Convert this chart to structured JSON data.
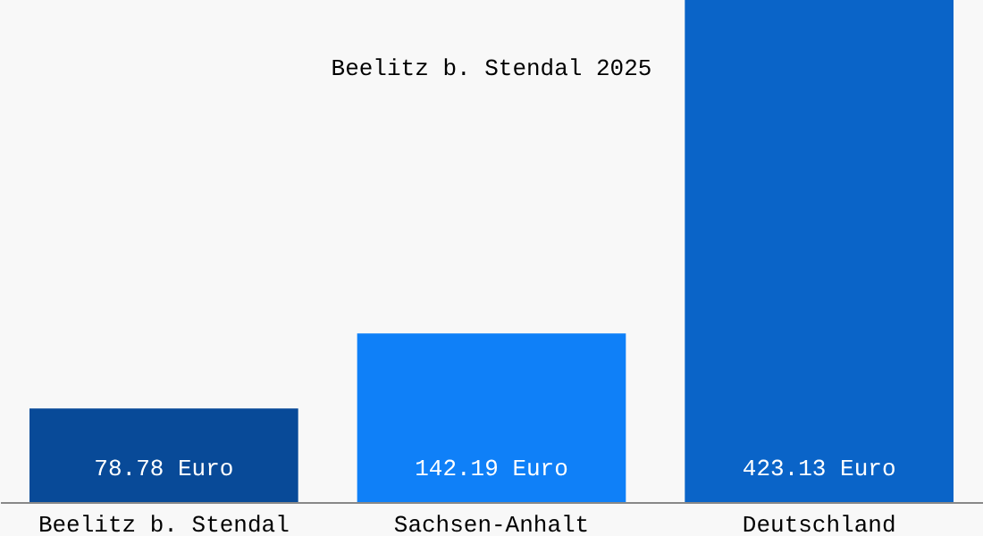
{
  "chart_data": {
    "type": "bar",
    "title": "Beelitz b. Stendal 2025",
    "categories": [
      "Beelitz b. Stendal",
      "Sachsen-Anhalt",
      "Deutschland"
    ],
    "values": [
      78.78,
      142.19,
      423.13
    ],
    "colors": [
      "#084a98",
      "#0f80f8",
      "#0a64c8"
    ],
    "value_labels": [
      "78.78 Euro",
      "142.19 Euro",
      "423.13 Euro"
    ],
    "ylim": [
      0,
      423.13
    ],
    "tick_labels": "x",
    "grid": false
  }
}
